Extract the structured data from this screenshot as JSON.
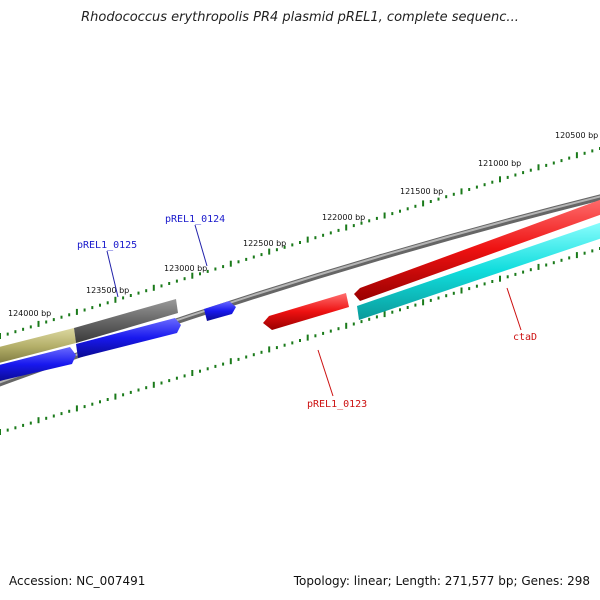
{
  "title": "Rhodococcus erythropolis PR4 plasmid pREL1, complete sequenc...",
  "footer": {
    "accession": "Accession: NC_007491",
    "summary": "Topology: linear; Length: 271,577 bp; Genes: 298"
  },
  "ticks": [
    "120500 bp",
    "121000 bp",
    "121500 bp",
    "122000 bp",
    "122500 bp",
    "123000 bp",
    "123500 bp",
    "124000 bp"
  ],
  "genes": [
    {
      "id": "pREL1_0125",
      "color": "#1a1acc"
    },
    {
      "id": "pREL1_0124",
      "color": "#1a1acc"
    },
    {
      "id": "pREL1_0123",
      "color": "#dd1111"
    },
    {
      "id": "ctaD",
      "color": "#dd1111"
    }
  ],
  "colors": {
    "backbone": "#777777",
    "tick": "#1a7a1a",
    "forward_gene": "#1a1aee",
    "reverse_gene": "#ee1111",
    "cyan_feature": "#11dddd",
    "gray_feature": "#666666",
    "khaki_feature": "#b5b06a"
  }
}
